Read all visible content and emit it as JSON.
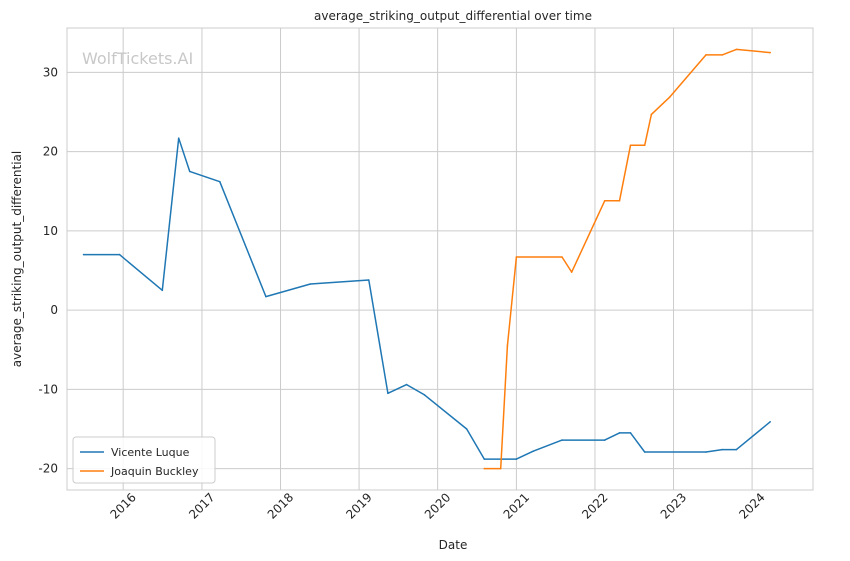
{
  "chart_data": {
    "type": "line",
    "title": "average_striking_output_differential over time",
    "xlabel": "Date",
    "ylabel": "average_striking_output_differential",
    "watermark": "WolfTickets.AI",
    "x_ticks": [
      "2016",
      "2017",
      "2018",
      "2019",
      "2020",
      "2021",
      "2022",
      "2023",
      "2024"
    ],
    "y_ticks": [
      -20,
      -10,
      0,
      10,
      20,
      30
    ],
    "xlim": [
      "2015-04-15",
      "2024-10-10"
    ],
    "ylim": [
      -22.7,
      35.6
    ],
    "grid": true,
    "legend_position": "lower-left",
    "series": [
      {
        "name": "Vicente Luque",
        "color": "#1f77b4",
        "points": [
          {
            "x": "2015-07-01",
            "y": 7.0
          },
          {
            "x": "2015-12-15",
            "y": 7.0
          },
          {
            "x": "2016-07-01",
            "y": 2.5
          },
          {
            "x": "2016-09-15",
            "y": 21.7
          },
          {
            "x": "2016-11-05",
            "y": 17.5
          },
          {
            "x": "2017-03-25",
            "y": 16.2
          },
          {
            "x": "2017-10-25",
            "y": 1.7
          },
          {
            "x": "2018-05-20",
            "y": 3.3
          },
          {
            "x": "2019-02-15",
            "y": 3.8
          },
          {
            "x": "2019-05-15",
            "y": -10.5
          },
          {
            "x": "2019-08-10",
            "y": -9.4
          },
          {
            "x": "2019-11-01",
            "y": -10.7
          },
          {
            "x": "2020-05-15",
            "y": -15.0
          },
          {
            "x": "2020-08-05",
            "y": -18.8
          },
          {
            "x": "2021-01-01",
            "y": -18.8
          },
          {
            "x": "2021-03-20",
            "y": -17.8
          },
          {
            "x": "2021-08-01",
            "y": -16.4
          },
          {
            "x": "2022-02-15",
            "y": -16.4
          },
          {
            "x": "2022-04-25",
            "y": -15.5
          },
          {
            "x": "2022-06-15",
            "y": -15.5
          },
          {
            "x": "2022-08-20",
            "y": -17.9
          },
          {
            "x": "2023-06-01",
            "y": -17.9
          },
          {
            "x": "2023-08-15",
            "y": -17.6
          },
          {
            "x": "2023-10-20",
            "y": -17.6
          },
          {
            "x": "2024-03-25",
            "y": -14.1
          }
        ]
      },
      {
        "name": "Joaquin Buckley",
        "color": "#ff7f0e",
        "points": [
          {
            "x": "2020-08-05",
            "y": -20.0
          },
          {
            "x": "2020-10-20",
            "y": -20.0
          },
          {
            "x": "2020-11-20",
            "y": -4.5
          },
          {
            "x": "2021-01-01",
            "y": 6.7
          },
          {
            "x": "2021-08-01",
            "y": 6.7
          },
          {
            "x": "2021-09-15",
            "y": 4.8
          },
          {
            "x": "2022-02-15",
            "y": 13.8
          },
          {
            "x": "2022-04-25",
            "y": 13.8
          },
          {
            "x": "2022-06-15",
            "y": 20.8
          },
          {
            "x": "2022-08-20",
            "y": 20.8
          },
          {
            "x": "2022-09-20",
            "y": 24.7
          },
          {
            "x": "2022-12-15",
            "y": 26.9
          },
          {
            "x": "2023-06-01",
            "y": 32.2
          },
          {
            "x": "2023-08-15",
            "y": 32.2
          },
          {
            "x": "2023-10-20",
            "y": 32.9
          },
          {
            "x": "2024-03-25",
            "y": 32.5
          }
        ]
      }
    ]
  }
}
